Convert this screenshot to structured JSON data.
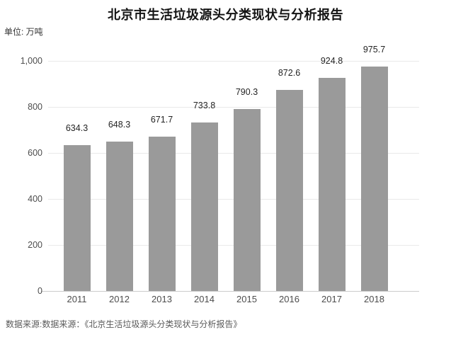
{
  "page": {
    "title": "北京市生活垃圾源头分类现状与分析报告",
    "unit_label": "单位: 万吨",
    "source_note": "数据来源:数据来源：《北京生活垃圾源头分类现状与分析报告》"
  },
  "colors": {
    "background": "#ffffff",
    "bar": "#9a9a9a",
    "gridline": "#e9e9e9",
    "axis_line": "#cccccc",
    "title_text": "#141414",
    "value_label": "#232323",
    "tick_label": "#4d4d4d",
    "source_text": "#5a5a5a"
  },
  "chart_data": {
    "type": "bar",
    "title": "北京市生活垃圾源头分类现状与分析报告",
    "unit": "万吨",
    "categories": [
      "2011",
      "2012",
      "2013",
      "2014",
      "2015",
      "2016",
      "2017",
      "2018"
    ],
    "values": [
      634.3,
      648.3,
      671.7,
      733.8,
      790.3,
      872.6,
      924.8,
      975.7
    ],
    "value_labels": [
      "634.3",
      "648.3",
      "671.7",
      "733.8",
      "790.3",
      "872.6",
      "924.8",
      "975.7"
    ],
    "xlabel": "",
    "ylabel": "万吨",
    "ylim": [
      0,
      1000
    ],
    "yticks": [
      0,
      200,
      400,
      600,
      800,
      1000
    ],
    "ytick_labels": [
      "0",
      "200",
      "400",
      "600",
      "800",
      "1,000"
    ],
    "grid": true,
    "grid_orientation": "horizontal",
    "legend": false,
    "bar_color": "#9a9a9a",
    "source": "数据来源:数据来源：《北京生活垃圾源头分类现状与分析报告》"
  }
}
